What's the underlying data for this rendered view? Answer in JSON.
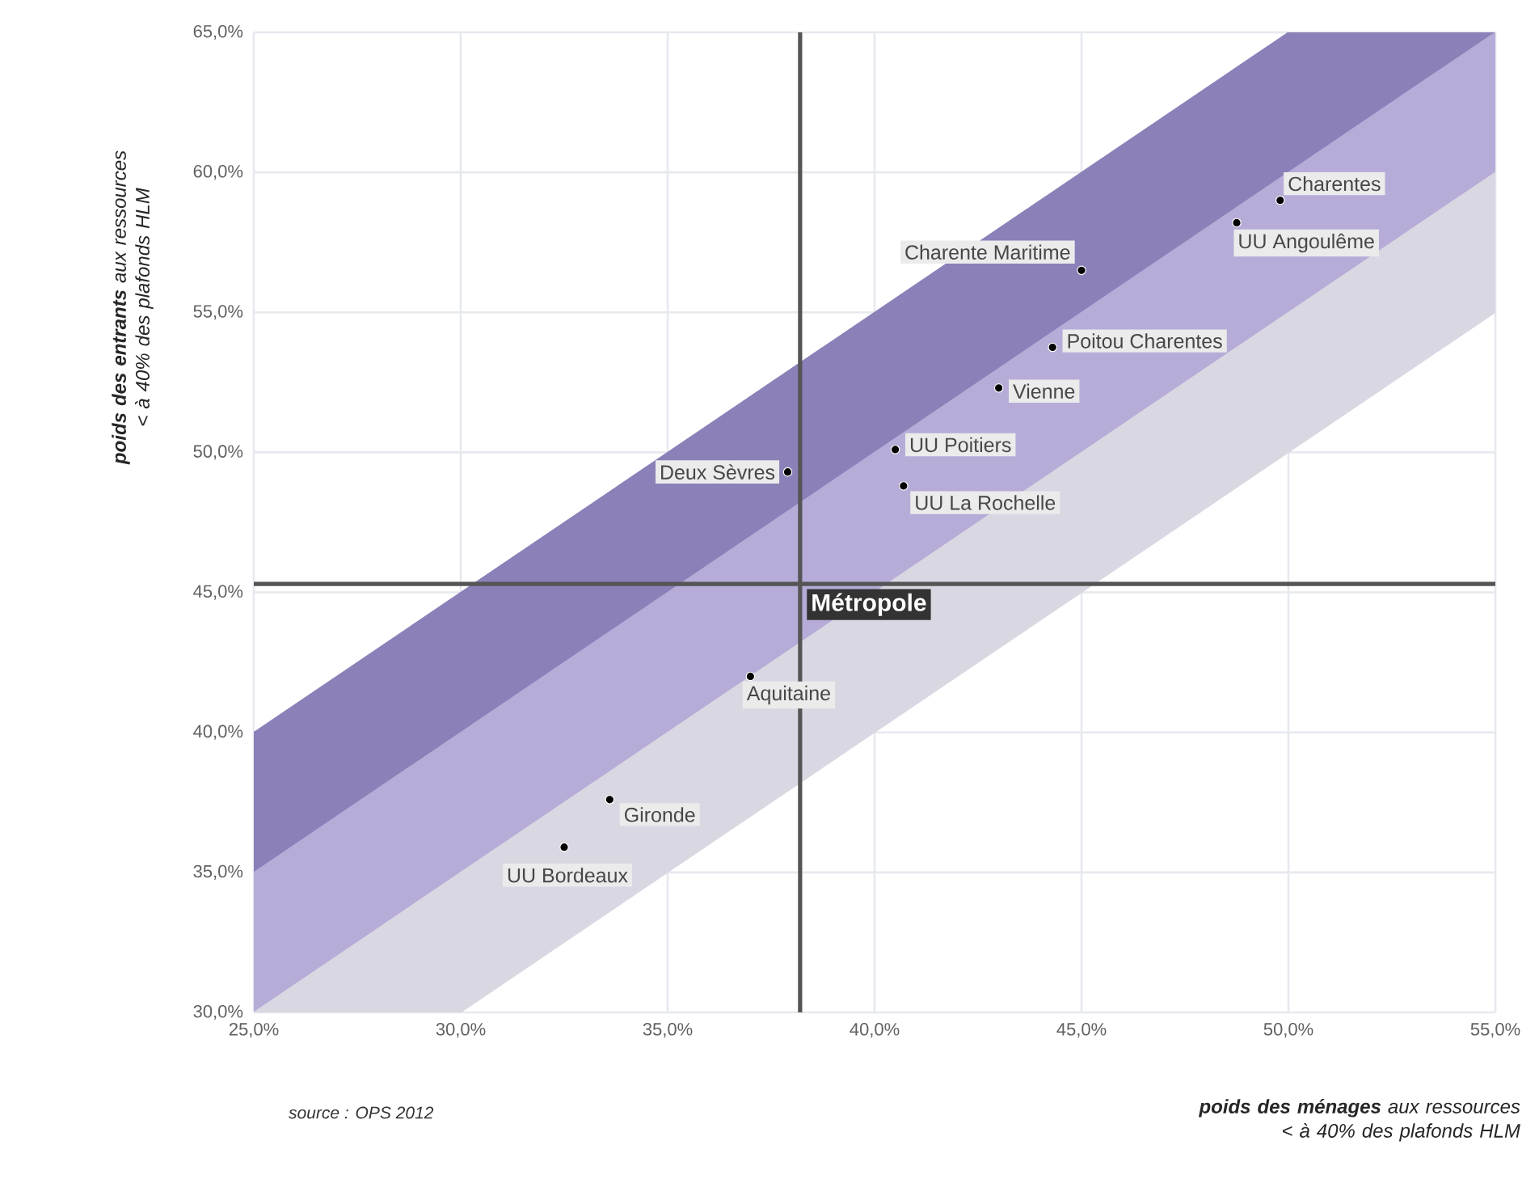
{
  "chart_data": {
    "type": "scatter",
    "xlabel": "**poids des ménages** aux ressources < à 40% des plafonds HLM",
    "ylabel": "**poids des entrants** aux ressources < à 40% des plafonds HLM",
    "xlim": [
      25,
      55
    ],
    "ylim": [
      30,
      65
    ],
    "xticks": [
      {
        "value": 25,
        "label": "25,0%"
      },
      {
        "value": 30,
        "label": "30,0%"
      },
      {
        "value": 35,
        "label": "35,0%"
      },
      {
        "value": 40,
        "label": "40,0%"
      },
      {
        "value": 45,
        "label": "45,0%"
      },
      {
        "value": 50,
        "label": "50,0%"
      },
      {
        "value": 55,
        "label": "55,0%"
      }
    ],
    "yticks": [
      {
        "value": 30,
        "label": "30,0%"
      },
      {
        "value": 35,
        "label": "35,0%"
      },
      {
        "value": 40,
        "label": "40,0%"
      },
      {
        "value": 45,
        "label": "45,0%"
      },
      {
        "value": 50,
        "label": "50,0%"
      },
      {
        "value": 55,
        "label": "55,0%"
      },
      {
        "value": 60,
        "label": "60,0%"
      },
      {
        "value": 65,
        "label": "65,0%"
      }
    ],
    "grid": true,
    "series": [
      {
        "type": "area",
        "marker": "none",
        "color": "#8b80b8",
        "x": [
          25,
          50,
          55
        ],
        "values": [
          null,
          null,
          null
        ],
        "upper": [
          40,
          65,
          65
        ],
        "lower": [
          35,
          60,
          65
        ]
      },
      {
        "type": "area",
        "marker": "none",
        "color": "#b7acd8",
        "x": [
          25,
          55
        ],
        "values": [
          null,
          null
        ],
        "upper": [
          35,
          65
        ],
        "lower": [
          30,
          60
        ]
      },
      {
        "type": "area",
        "marker": "none",
        "color": "#d9d8e2",
        "x": [
          25,
          30,
          55
        ],
        "values": [
          null,
          null,
          null
        ],
        "upper": [
          30,
          35,
          60
        ],
        "lower": [
          30,
          30,
          55
        ]
      },
      {
        "type": "scatter",
        "marker": "circle",
        "color": "#000000",
        "x": [
          49.8,
          48.75,
          45.0,
          44.3,
          43.0,
          40.5,
          40.7,
          37.9,
          37.0,
          33.6,
          32.5
        ],
        "values": [
          59.0,
          58.2,
          56.5,
          53.75,
          52.3,
          50.1,
          48.8,
          49.3,
          42.0,
          37.6,
          35.9
        ]
      }
    ],
    "ref_lines": [
      {
        "axis": "x",
        "value": 38.2,
        "color": "#555555"
      },
      {
        "axis": "y",
        "value": 45.3,
        "color": "#555555",
        "label": "Métropole"
      }
    ],
    "annotations": [
      {
        "text": "Charentes",
        "x": 49.8,
        "y": 59.0
      },
      {
        "text": "UU Angoulême",
        "x": 48.75,
        "y": 58.2
      },
      {
        "text": "Charente Maritime",
        "x": 45.0,
        "y": 56.5
      },
      {
        "text": "Poitou Charentes",
        "x": 44.3,
        "y": 53.75
      },
      {
        "text": "Vienne",
        "x": 43.0,
        "y": 52.3
      },
      {
        "text": "UU Poitiers",
        "x": 40.5,
        "y": 50.1
      },
      {
        "text": "UU La Rochelle",
        "x": 40.7,
        "y": 48.8
      },
      {
        "text": "Deux Sèvres",
        "x": 37.9,
        "y": 49.3
      },
      {
        "text": "Aquitaine",
        "x": 37.0,
        "y": 42.0
      },
      {
        "text": "Gironde",
        "x": 33.6,
        "y": 37.6
      },
      {
        "text": "UU Bordeaux",
        "x": 32.5,
        "y": 35.9
      },
      "source : OPS 2012"
    ]
  }
}
